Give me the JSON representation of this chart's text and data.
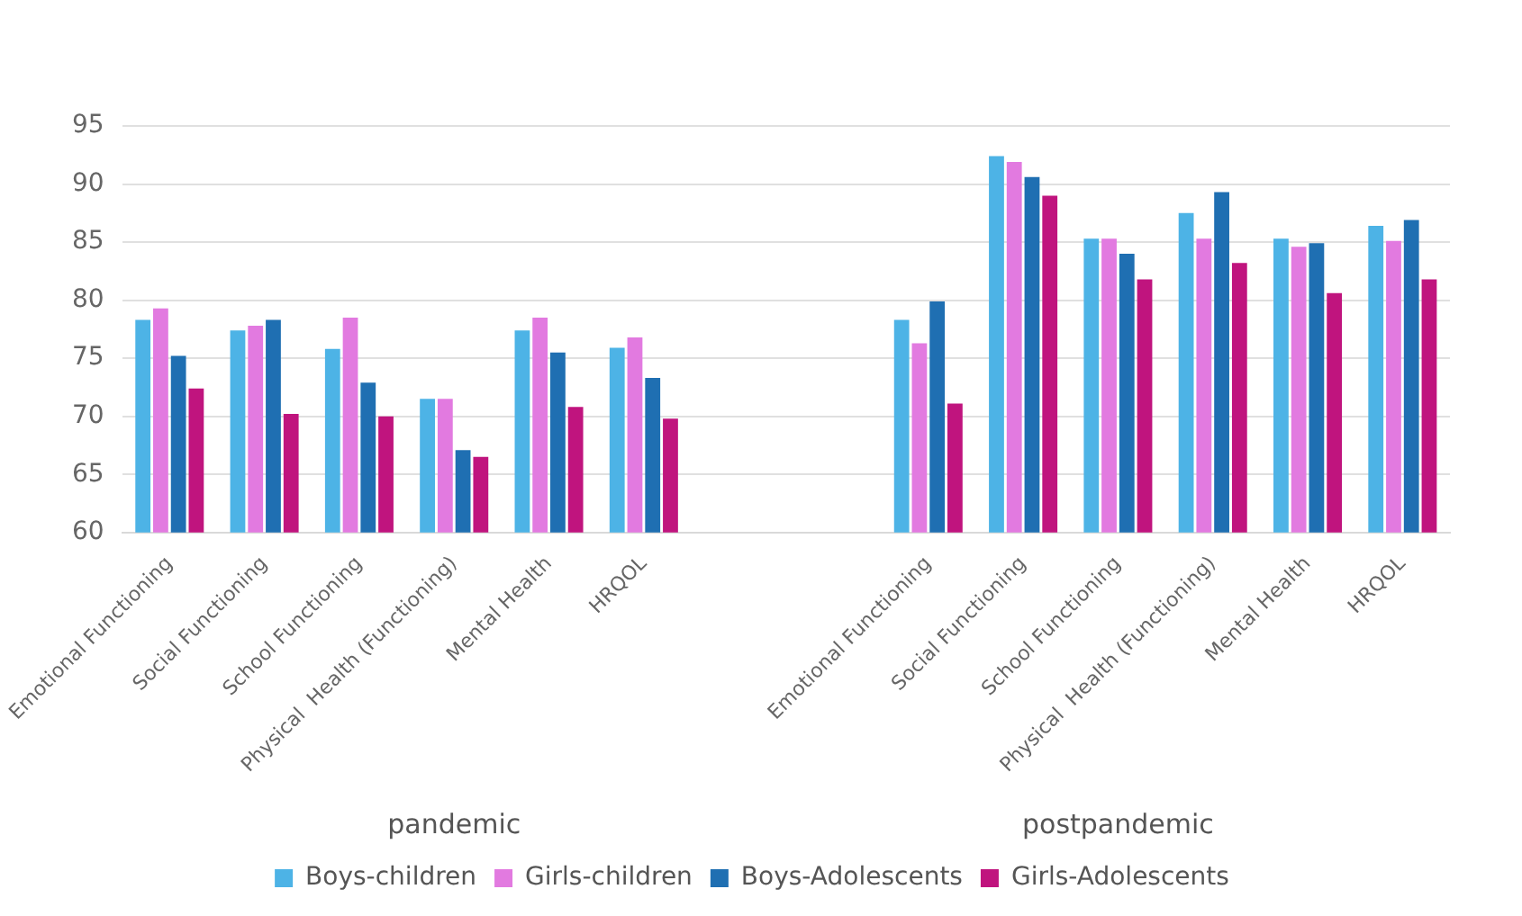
{
  "chart_data": {
    "type": "bar",
    "categories": [
      "Emotional Functioning",
      "Social Functioning",
      "School Functioning",
      "Physical  Health (Functioning)",
      "Mental Health",
      "HRQOL",
      null,
      null,
      "Emotional Functioning",
      "Social Functioning",
      "School Functioning",
      "Physical  Health (Functioning)",
      "Mental Health",
      "HRQOL"
    ],
    "series": [
      {
        "name": "Boys-children",
        "color": "#4db3e6",
        "values": [
          78.3,
          77.4,
          75.8,
          71.5,
          77.4,
          75.9,
          null,
          null,
          78.3,
          92.4,
          85.3,
          87.5,
          85.3,
          86.4
        ]
      },
      {
        "name": "Girls-children",
        "color": "#e27ae0",
        "values": [
          79.3,
          77.8,
          78.5,
          71.5,
          78.5,
          76.8,
          null,
          null,
          76.3,
          91.9,
          85.3,
          85.3,
          84.6,
          85.1
        ]
      },
      {
        "name": "Boys-Adolescents",
        "color": "#1f6fb2",
        "values": [
          75.2,
          78.3,
          72.9,
          67.1,
          75.5,
          73.3,
          null,
          null,
          79.9,
          90.6,
          84.0,
          89.3,
          84.9,
          86.9
        ]
      },
      {
        "name": "Girls-Adolescents",
        "color": "#c0147e",
        "values": [
          72.4,
          70.2,
          70.0,
          66.5,
          70.8,
          69.8,
          null,
          null,
          71.1,
          89.0,
          81.8,
          83.2,
          80.6,
          81.8
        ]
      }
    ],
    "ylim": [
      60,
      95
    ],
    "yticks": [
      60,
      65,
      70,
      75,
      80,
      85,
      90,
      95
    ],
    "grid": "y",
    "legend": "bottom",
    "annotations": [
      "pandemic",
      "postpandemic"
    ]
  }
}
